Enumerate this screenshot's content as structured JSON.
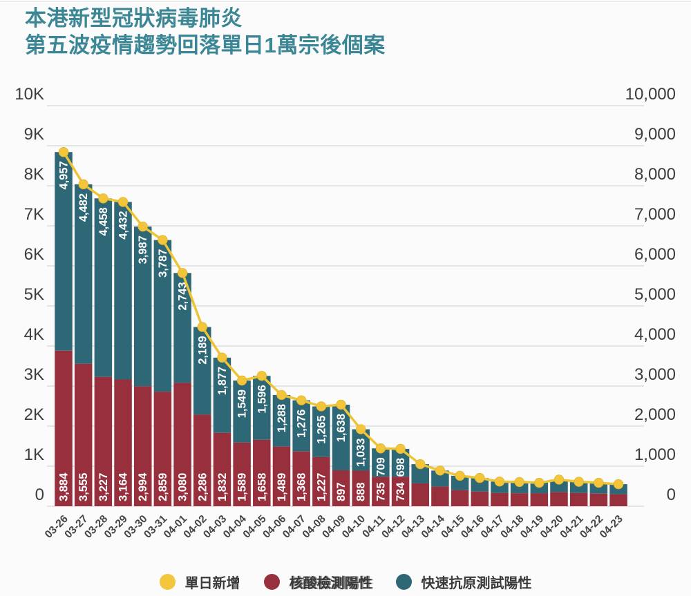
{
  "title": {
    "line1": "本港新型冠狀病毒肺炎",
    "line2": "第五波疫情趨勢回落單日1萬宗後個案"
  },
  "colors": {
    "title": "#3c8795",
    "bar_pcr": "#97303c",
    "bar_rat": "#2e6775",
    "line": "#eec437",
    "dot": "#f2c53c",
    "grid": "#dcdcdc",
    "axis_text": "#3d3d3d",
    "bar_label_text": "#ffffff",
    "background": "#fbfbfb"
  },
  "axes": {
    "left_ticks": [
      "10K",
      "9K",
      "8K",
      "7K",
      "6K",
      "5K",
      "4K",
      "3K",
      "2K",
      "1K",
      "0"
    ],
    "right_ticks": [
      "10,000",
      "9,000",
      "8,000",
      "7,000",
      "6,000",
      "5,000",
      "4,000",
      "3,000",
      "2,000",
      "1,000",
      "0"
    ]
  },
  "legend": {
    "items": [
      {
        "label": "單日新增",
        "color": "#f2c53c",
        "doubled": false
      },
      {
        "label": "核酸檢測陽性",
        "color": "#97303c",
        "doubled": true
      },
      {
        "label": "快速抗原測試陽性",
        "color": "#2e6775",
        "doubled": false
      }
    ]
  },
  "chart_data": {
    "type": "bar",
    "subtype": "stacked-bars-with-line-overlay",
    "categories": [
      "03-26",
      "03-27",
      "03-28",
      "03-29",
      "03-30",
      "03-31",
      "04-01",
      "04-02",
      "04-03",
      "04-04",
      "04-05",
      "04-06",
      "04-07",
      "04-08",
      "04-09",
      "04-10",
      "04-11",
      "04-12",
      "04-13",
      "04-14",
      "04-15",
      "04-16",
      "04-17",
      "04-18",
      "04-19",
      "04-20",
      "04-21",
      "04-22",
      "04-23"
    ],
    "series": [
      {
        "name": "核酸檢測陽性",
        "type": "bar-bottom",
        "color": "#97303c",
        "values": [
          3884,
          3555,
          3227,
          3164,
          2994,
          2859,
          3080,
          2286,
          1832,
          1589,
          1658,
          1489,
          1368,
          1227,
          897,
          888,
          735,
          734,
          570,
          490,
          400,
          365,
          330,
          325,
          320,
          350,
          330,
          315,
          300
        ]
      },
      {
        "name": "快速抗原測試陽性",
        "type": "bar-top",
        "color": "#2e6775",
        "values": [
          4957,
          4482,
          4458,
          4432,
          3987,
          3787,
          2743,
          2189,
          1877,
          1549,
          1596,
          1288,
          1276,
          1265,
          1638,
          1033,
          709,
          698,
          480,
          400,
          360,
          340,
          285,
          280,
          265,
          315,
          280,
          270,
          250
        ]
      },
      {
        "name": "單日新增",
        "type": "line",
        "color": "#eec437",
        "values": [
          8841,
          8037,
          7685,
          7596,
          6981,
          6646,
          5823,
          4475,
          3709,
          3138,
          3254,
          2777,
          2644,
          2492,
          2535,
          1921,
          1444,
          1432,
          1050,
          890,
          760,
          705,
          615,
          605,
          585,
          665,
          610,
          585,
          550
        ]
      }
    ],
    "bar_labels": {
      "pcr": [
        "3,884",
        "3,555",
        "3,227",
        "3,164",
        "2,994",
        "2,859",
        "3,080",
        "2,286",
        "1,832",
        "1,589",
        "1,658",
        "1,489",
        "1,368",
        "1,227",
        "897",
        "888",
        "735",
        "734",
        null,
        null,
        null,
        null,
        null,
        null,
        null,
        null,
        null,
        null,
        null
      ],
      "rat": [
        "4,957",
        "4,482",
        "4,458",
        "4,432",
        "3,987",
        "3,787",
        "2,743",
        "2,189",
        "1,877",
        "1,549",
        "1,596",
        "1,288",
        "1,276",
        "1,265",
        "1,638",
        "1,033",
        "709",
        "698",
        null,
        null,
        null,
        null,
        null,
        null,
        null,
        null,
        null,
        null,
        null
      ]
    },
    "title": "本港新型冠狀病毒肺炎 第五波疫情趨勢回落單日1萬宗後個案",
    "xlabel": "",
    "ylabel": "",
    "ylim": [
      0,
      10000
    ],
    "grid": true,
    "legend_position": "bottom"
  }
}
